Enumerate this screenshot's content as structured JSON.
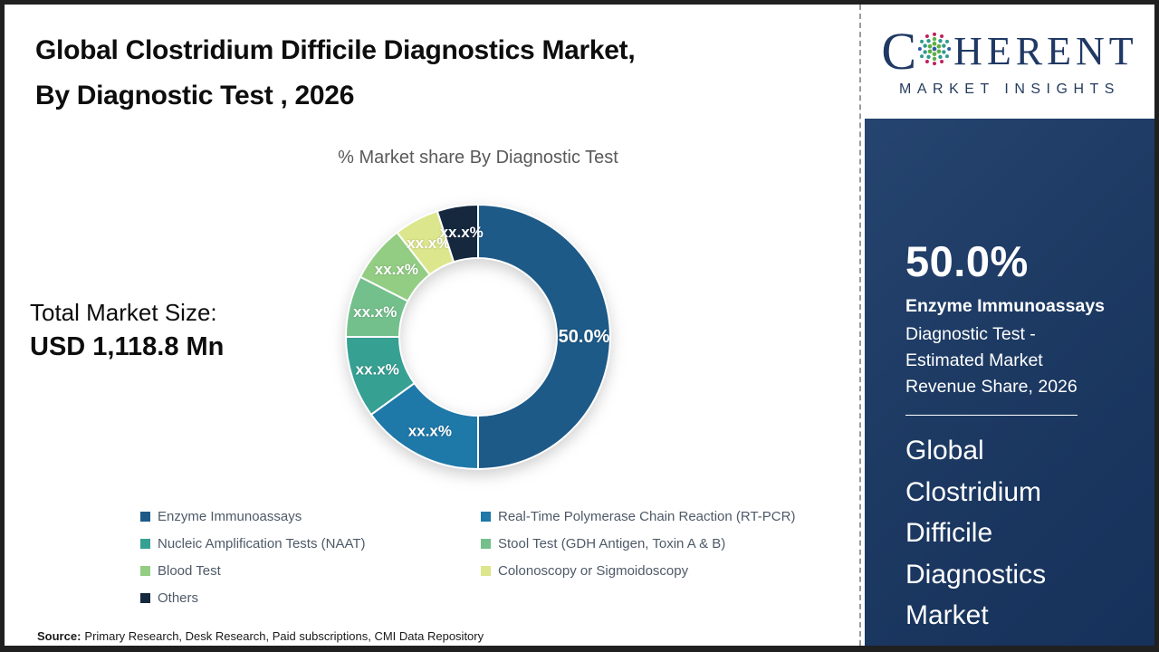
{
  "header": {
    "title_lines": [
      "Global Clostridium Difficile Diagnostics Market,",
      "By Diagnostic Test , 2026"
    ],
    "subtitle": "% Market share By Diagnostic Test"
  },
  "total_market": {
    "label": "Total Market Size:",
    "value": "USD 1,118.8 Mn"
  },
  "chart_data": {
    "type": "pie",
    "donut": true,
    "title": "% Market share By Diagnostic Test",
    "categories": [
      "Enzyme Immunoassays",
      "Real-Time Polymerase Chain Reaction (RT-PCR)",
      "Nucleic Amplification Tests (NAAT)",
      "Stool Test (GDH Antigen, Toxin A & B)",
      "Blood Test",
      "Colonoscopy or Sigmoidoscopy",
      "Others"
    ],
    "slice_labels": [
      "50.0%",
      "xx.x%",
      "xx.x%",
      "xx.x%",
      "xx.x%",
      "xx.x%",
      "xx.x%"
    ],
    "values_pct_estimated": [
      50,
      15,
      10,
      7.5,
      7,
      5.5,
      5
    ],
    "colors": [
      "#1d5a88",
      "#1e78a8",
      "#36a093",
      "#74c08c",
      "#93cd84",
      "#dce68c",
      "#15283e"
    ],
    "legend_position": "bottom",
    "start_angle_deg": 0,
    "direction": "clockwise"
  },
  "source": {
    "label": "Source:",
    "text": "Primary Research, Desk Research, Paid subscriptions, CMI Data Repository"
  },
  "sidebar": {
    "logo": {
      "brand_c": "C",
      "brand_rest": "HERENT",
      "tagline": "MARKET INSIGHTS"
    },
    "highlight_value": "50.0%",
    "highlight_category": "Enzyme Immunoassays",
    "highlight_desc": "Diagnostic Test - Estimated Market Revenue Share, 2026",
    "market_name_lines": [
      "Global",
      "Clostridium",
      "Difficile",
      "Diagnostics",
      "Market"
    ],
    "bg_color": "#1d3a63"
  }
}
